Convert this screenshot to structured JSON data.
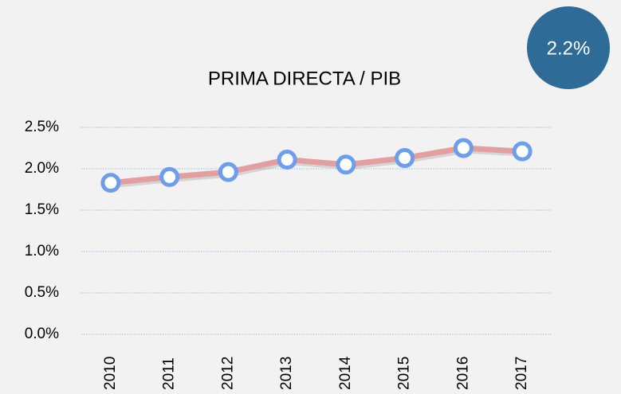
{
  "chart_data": {
    "type": "line",
    "title": "PRIMA DIRECTA / PIB",
    "annotation": "2.2%",
    "categories": [
      "2010",
      "2011",
      "2012",
      "2013",
      "2014",
      "2015",
      "2016",
      "2017"
    ],
    "series": [
      {
        "name": "PRIMA DIRECTA / PIB",
        "color": "#e39e9e",
        "marker_color": "#6d9eeb",
        "values": [
          1.83,
          1.9,
          1.96,
          2.11,
          2.05,
          2.13,
          2.25,
          2.21
        ]
      }
    ],
    "ylim": [
      0,
      2.5
    ],
    "yticks": [
      {
        "value": 0,
        "label": "0.0%"
      },
      {
        "value": 0.5,
        "label": "0.5%"
      },
      {
        "value": 1,
        "label": "1.0%"
      },
      {
        "value": 1.5,
        "label": "1.5%"
      },
      {
        "value": 2,
        "label": "2.0%"
      },
      {
        "value": 2.5,
        "label": "2.5%"
      }
    ],
    "grid": true,
    "legend": false
  }
}
